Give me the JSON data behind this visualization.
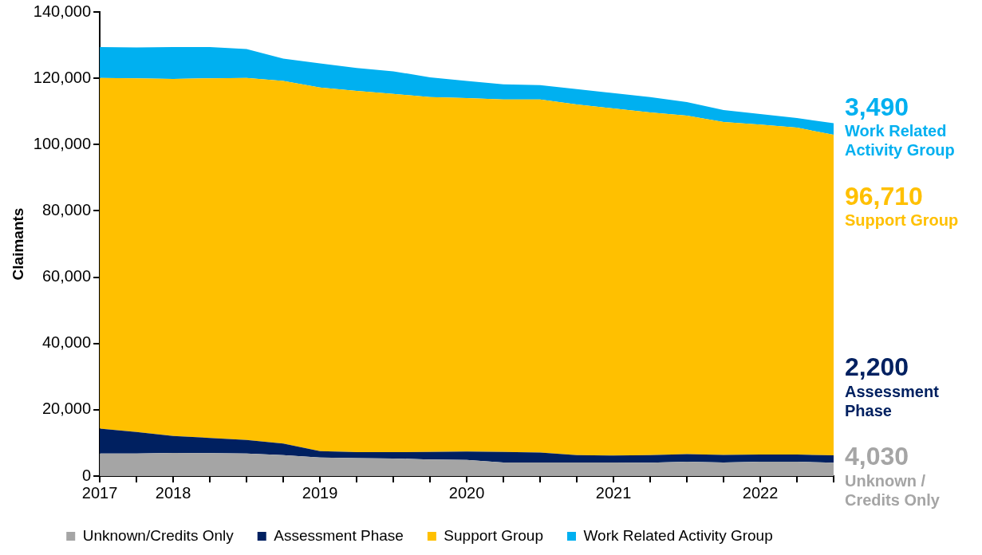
{
  "chart_data": {
    "type": "area",
    "stacked": true,
    "ylabel": "Claimants",
    "categories": [
      "2017",
      null,
      "2018",
      null,
      null,
      null,
      "2019",
      null,
      null,
      null,
      "2020",
      null,
      null,
      null,
      "2021",
      null,
      null,
      null,
      "2022",
      null,
      null
    ],
    "series": [
      {
        "name": "Unknown/Credits Only",
        "color": "#a5a5a5",
        "values": [
          6800,
          6800,
          7000,
          6900,
          6800,
          6300,
          5600,
          5400,
          5300,
          5000,
          4900,
          4100,
          4100,
          4100,
          4100,
          4000,
          4300,
          4100,
          4300,
          4300,
          4030
        ],
        "value_labels": [
          null,
          null,
          null,
          null,
          null,
          null,
          null,
          null,
          null,
          null,
          null,
          null,
          null,
          null,
          null,
          null,
          null,
          null,
          null,
          null,
          "4,030"
        ]
      },
      {
        "name": "Assessment Phase",
        "color": "#002060",
        "values": [
          7500,
          6500,
          5100,
          4600,
          4100,
          3500,
          1900,
          1800,
          1900,
          2300,
          2500,
          3200,
          3000,
          2200,
          2100,
          2300,
          2300,
          2300,
          2200,
          2200,
          2200
        ],
        "value_labels": [
          null,
          null,
          null,
          null,
          null,
          null,
          null,
          null,
          null,
          null,
          null,
          null,
          null,
          null,
          null,
          null,
          null,
          null,
          null,
          null,
          "2,200"
        ]
      },
      {
        "name": "Support Group",
        "color": "#ffc000",
        "values": [
          105800,
          106700,
          107700,
          108500,
          109200,
          109400,
          109700,
          109000,
          108100,
          107000,
          106600,
          106300,
          106500,
          105800,
          104700,
          103400,
          102100,
          100400,
          99500,
          98600,
          96710
        ],
        "value_labels": [
          null,
          null,
          null,
          null,
          null,
          null,
          null,
          null,
          null,
          null,
          null,
          null,
          null,
          null,
          null,
          null,
          null,
          null,
          null,
          null,
          "96,710"
        ]
      },
      {
        "name": "Work Related Activity Group",
        "color": "#00b0f0",
        "values": [
          9300,
          9300,
          9600,
          9400,
          8700,
          6700,
          7300,
          6900,
          6800,
          6000,
          5200,
          4600,
          4300,
          4600,
          4600,
          4600,
          4100,
          3600,
          3200,
          2900,
          3490
        ],
        "value_labels": [
          null,
          null,
          null,
          null,
          null,
          null,
          null,
          null,
          null,
          null,
          null,
          null,
          null,
          null,
          null,
          null,
          null,
          null,
          null,
          null,
          "3,490"
        ]
      }
    ],
    "annotations": [
      "Unknown / Credits Only",
      "Assessment Phase",
      "Support Group",
      "Work Related Activity Group"
    ],
    "ylim": [
      0,
      140000
    ],
    "yticks": [
      0,
      {
        "value": 20000,
        "label": "20,000"
      },
      {
        "value": 40000,
        "label": "40,000"
      },
      {
        "value": 60000,
        "label": "60,000"
      },
      {
        "value": 80000,
        "label": "80,000"
      },
      {
        "value": 100000,
        "label": "100,000"
      },
      {
        "value": 120000,
        "label": "120,000"
      },
      {
        "value": 140000,
        "label": "140,000"
      }
    ],
    "grid": false,
    "legend": "bottom"
  }
}
